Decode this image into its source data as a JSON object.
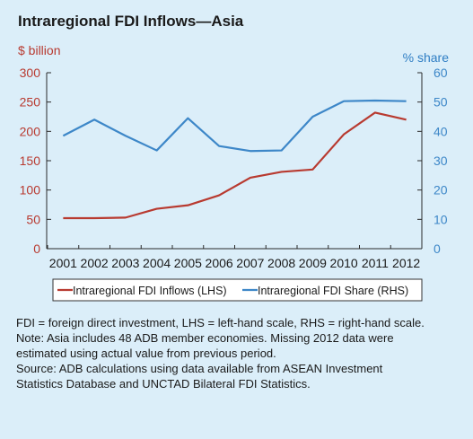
{
  "title": "Intraregional FDI Inflows—Asia",
  "unit_left": "$ billion",
  "unit_right": "% share",
  "notes": [
    "FDI = foreign direct investment, LHS = left-hand scale, RHS = right-hand scale.",
    "Note: Asia includes 48 ADB member economies. Missing 2012 data were",
    "estimated using actual value from previous period.",
    "Source: ADB calculations using data available from ASEAN Investment",
    "Statistics Database and UNCTAD Bilateral FDI Statistics."
  ],
  "colors": {
    "inflows": "#b83a30",
    "share": "#3d87c8",
    "axis": "#2a2a2a"
  },
  "chart_data": {
    "type": "line",
    "x": [
      "2001",
      "2002",
      "2003",
      "2004",
      "2005",
      "2006",
      "2007",
      "2008",
      "2009",
      "2010",
      "2011",
      "2012"
    ],
    "y_left": {
      "lim": [
        0,
        300
      ],
      "ticks": [
        0,
        50,
        100,
        150,
        200,
        250,
        300
      ]
    },
    "y_right": {
      "lim": [
        0,
        60
      ],
      "ticks": [
        0,
        10,
        20,
        30,
        40,
        50,
        60
      ]
    },
    "series": [
      {
        "name": "Intraregional FDI Inflows (LHS)",
        "axis": "left",
        "values": [
          52,
          52,
          53,
          68,
          74,
          91,
          121,
          131,
          135,
          195,
          232,
          220
        ]
      },
      {
        "name": "Intraregional FDI Share (RHS)",
        "axis": "right",
        "values": [
          38.5,
          44,
          38.5,
          33.5,
          44.5,
          35,
          33.3,
          33.5,
          45,
          50.3,
          50.5,
          50.3
        ]
      }
    ],
    "legend_position": "bottom"
  }
}
